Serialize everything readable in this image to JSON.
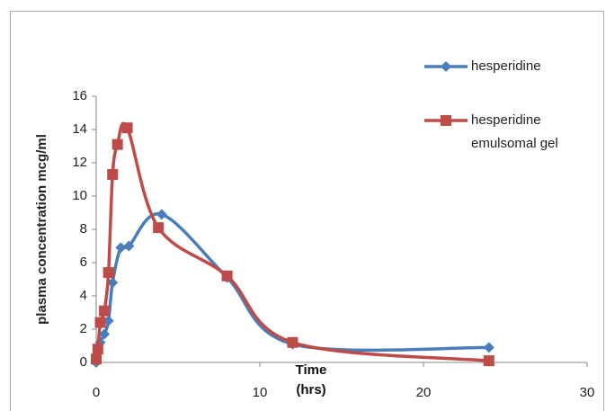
{
  "chart_data": {
    "type": "line",
    "x_label": "Time (hrs)",
    "y_label": "plasma concentration mcg/ml",
    "xlim": [
      0,
      30
    ],
    "xticks": [
      0,
      10,
      20,
      30
    ],
    "ylim": [
      0,
      16
    ],
    "yticks": [
      0,
      2,
      4,
      6,
      8,
      10,
      12,
      14,
      16
    ],
    "legend": "right",
    "series": [
      {
        "name": "hesperidine",
        "color": "#4a7ebb",
        "marker": "diamond",
        "x": [
          0,
          0.25,
          0.5,
          0.75,
          1,
          1.5,
          2,
          4,
          8,
          12,
          24
        ],
        "values": [
          0,
          1.2,
          1.7,
          2.5,
          4.8,
          6.9,
          7.0,
          8.9,
          5.1,
          1.1,
          0.9
        ]
      },
      {
        "name": "hesperidine emulsomal gel",
        "color": "#be4b48",
        "marker": "square",
        "x": [
          0,
          0.1,
          0.25,
          0.5,
          0.75,
          1,
          1.3,
          1.9,
          3.8,
          8,
          12,
          24
        ],
        "values": [
          0.2,
          0.8,
          2.4,
          3.1,
          5.4,
          11.3,
          13.1,
          14.1,
          8.1,
          5.2,
          1.2,
          0.1
        ]
      }
    ]
  }
}
